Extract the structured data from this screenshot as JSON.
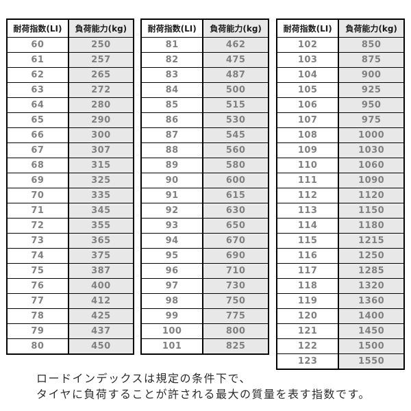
{
  "tables": [
    {
      "name": "load-index-60-80",
      "headers": [
        "耐荷指数(LI)",
        "負荷能力(kg)"
      ],
      "rows": [
        [
          "60",
          "250"
        ],
        [
          "61",
          "257"
        ],
        [
          "62",
          "265"
        ],
        [
          "63",
          "272"
        ],
        [
          "64",
          "280"
        ],
        [
          "65",
          "290"
        ],
        [
          "66",
          "300"
        ],
        [
          "67",
          "307"
        ],
        [
          "68",
          "315"
        ],
        [
          "69",
          "325"
        ],
        [
          "70",
          "335"
        ],
        [
          "71",
          "345"
        ],
        [
          "72",
          "355"
        ],
        [
          "73",
          "365"
        ],
        [
          "74",
          "375"
        ],
        [
          "75",
          "387"
        ],
        [
          "76",
          "400"
        ],
        [
          "77",
          "412"
        ],
        [
          "78",
          "425"
        ],
        [
          "79",
          "437"
        ],
        [
          "80",
          "450"
        ]
      ]
    },
    {
      "name": "load-index-81-101",
      "headers": [
        "耐荷指数(LI)",
        "負荷能力(kg)"
      ],
      "rows": [
        [
          "81",
          "462"
        ],
        [
          "82",
          "475"
        ],
        [
          "83",
          "487"
        ],
        [
          "84",
          "500"
        ],
        [
          "85",
          "515"
        ],
        [
          "86",
          "530"
        ],
        [
          "87",
          "545"
        ],
        [
          "88",
          "560"
        ],
        [
          "89",
          "580"
        ],
        [
          "90",
          "600"
        ],
        [
          "91",
          "615"
        ],
        [
          "92",
          "630"
        ],
        [
          "93",
          "650"
        ],
        [
          "94",
          "670"
        ],
        [
          "95",
          "690"
        ],
        [
          "96",
          "710"
        ],
        [
          "97",
          "730"
        ],
        [
          "98",
          "750"
        ],
        [
          "99",
          "775"
        ],
        [
          "100",
          "800"
        ],
        [
          "101",
          "825"
        ]
      ]
    },
    {
      "name": "load-index-102-123",
      "headers": [
        "耐荷指数(LI)",
        "負荷能力(kg)"
      ],
      "rows": [
        [
          "102",
          "850"
        ],
        [
          "103",
          "875"
        ],
        [
          "104",
          "900"
        ],
        [
          "105",
          "925"
        ],
        [
          "106",
          "950"
        ],
        [
          "107",
          "975"
        ],
        [
          "108",
          "1000"
        ],
        [
          "109",
          "1030"
        ],
        [
          "110",
          "1060"
        ],
        [
          "111",
          "1090"
        ],
        [
          "112",
          "1120"
        ],
        [
          "113",
          "1150"
        ],
        [
          "114",
          "1180"
        ],
        [
          "115",
          "1215"
        ],
        [
          "116",
          "1250"
        ],
        [
          "117",
          "1285"
        ],
        [
          "118",
          "1320"
        ],
        [
          "119",
          "1360"
        ],
        [
          "120",
          "1400"
        ],
        [
          "121",
          "1450"
        ],
        [
          "122",
          "1500"
        ],
        [
          "123",
          "1550"
        ]
      ]
    }
  ],
  "footer": {
    "line1": "ロードインデックスは規定の条件下で、",
    "line2": "タイヤに負荷することが許される最大の質量を表す指数です。"
  },
  "colors": {
    "border": "#000000",
    "capacity_column_bg": "#e8e8e8",
    "value_text": "#808080",
    "header_text": "#1a1a1a",
    "footer_text": "#2b2b2b"
  }
}
